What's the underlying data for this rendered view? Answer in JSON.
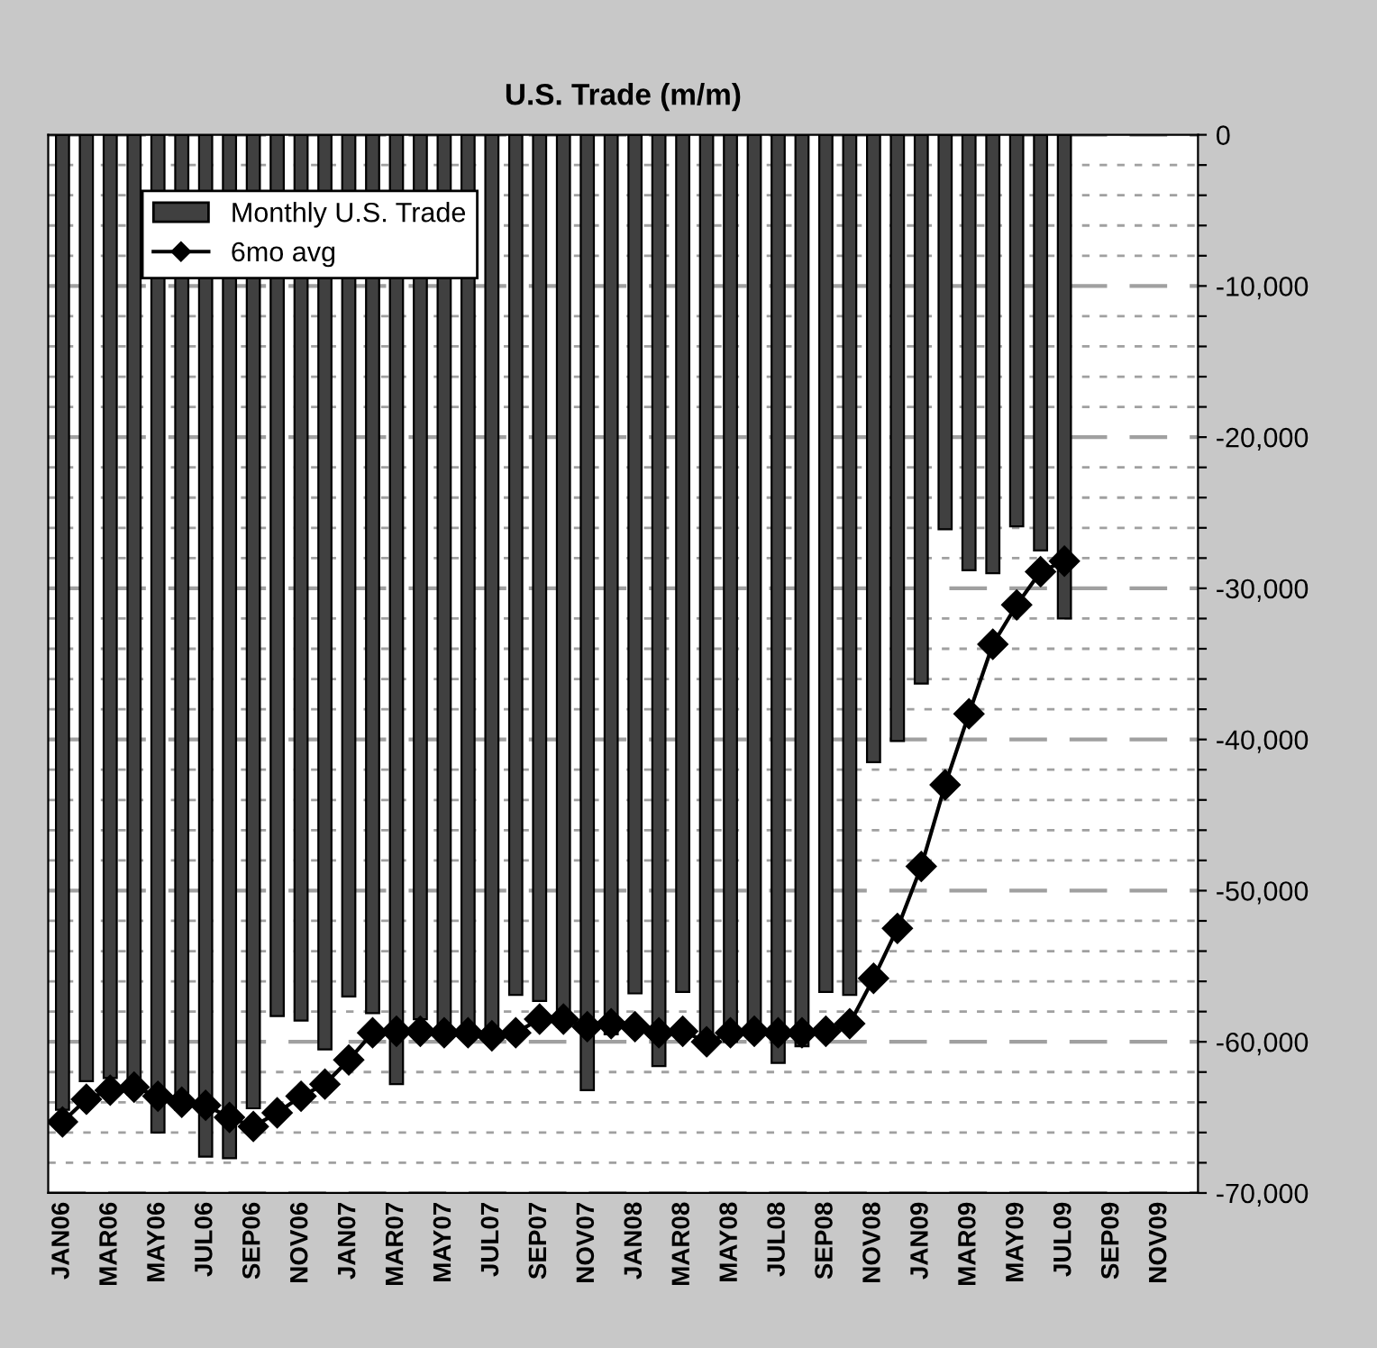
{
  "chart_data": {
    "type": "bar",
    "title": "U.S. Trade (m/m)",
    "categories": [
      "JAN06",
      null,
      "MAR06",
      null,
      "MAY06",
      null,
      "JUL06",
      null,
      "SEP06",
      null,
      "NOV06",
      null,
      "JAN07",
      null,
      "MAR07",
      null,
      "MAY07",
      null,
      "JUL07",
      null,
      "SEP07",
      null,
      "NOV07",
      null,
      "JAN08",
      null,
      "MAR08",
      null,
      "MAY08",
      null,
      "JUL08",
      null,
      "SEP08",
      null,
      "NOV08",
      null,
      "JAN09",
      null,
      "MAR09",
      null,
      "MAY09",
      null,
      "JUL09",
      null,
      "SEP09",
      null,
      "NOV09",
      null
    ],
    "series": [
      {
        "name": "Monthly U.S. Trade",
        "color": "#404040",
        "values": [
          -64500,
          -62600,
          -62400,
          -63500,
          -66000,
          -64500,
          -67600,
          -67700,
          -64400,
          -58300,
          -58600,
          -60500,
          -57000,
          -58100,
          -62800,
          -58500,
          -59000,
          -59000,
          -59000,
          -56900,
          -57300,
          -59000,
          -63200,
          -59500,
          -56800,
          -61600,
          -56700,
          -59500,
          -60000,
          -59000,
          -61400,
          -60300,
          -56700,
          -56900,
          -41500,
          -40100,
          -36300,
          -26100,
          -28800,
          -29000,
          -25900,
          -27500,
          -32000,
          null,
          null,
          null,
          null,
          null
        ]
      },
      {
        "name": "6mo avg",
        "type": "line",
        "color": "#000000",
        "marker": "diamond",
        "values": [
          -65300,
          -63800,
          -63200,
          -63000,
          -63600,
          -64000,
          -64200,
          -65000,
          -65600,
          -64700,
          -63600,
          -62800,
          -61200,
          -59400,
          -59300,
          -59300,
          -59400,
          -59400,
          -59600,
          -59400,
          -58500,
          -58500,
          -59000,
          -58800,
          -59000,
          -59400,
          -59300,
          -60000,
          -59400,
          -59300,
          -59400,
          -59400,
          -59300,
          -58800,
          -55800,
          -52500,
          -48400,
          -43000,
          -38300,
          -33700,
          -31100,
          -28900,
          -28200,
          null,
          null,
          null,
          null,
          null
        ]
      }
    ],
    "ylim": [
      -70000,
      0
    ],
    "yticks": [
      0,
      {
        "value": -2000,
        "label": null
      },
      {
        "value": -4000,
        "label": null
      },
      {
        "value": -6000,
        "label": null
      },
      {
        "value": -8000,
        "label": null
      },
      {
        "value": -10000,
        "label": "-10,000"
      },
      {
        "value": -12000,
        "label": null
      },
      {
        "value": -14000,
        "label": null
      },
      {
        "value": -16000,
        "label": null
      },
      {
        "value": -18000,
        "label": null
      },
      {
        "value": -20000,
        "label": "-20,000"
      },
      {
        "value": -22000,
        "label": null
      },
      {
        "value": -24000,
        "label": null
      },
      {
        "value": -26000,
        "label": null
      },
      {
        "value": -28000,
        "label": null
      },
      {
        "value": -30000,
        "label": "-30,000"
      },
      {
        "value": -32000,
        "label": null
      },
      {
        "value": -34000,
        "label": null
      },
      {
        "value": -36000,
        "label": null
      },
      {
        "value": -38000,
        "label": null
      },
      {
        "value": -40000,
        "label": "-40,000"
      },
      {
        "value": -42000,
        "label": null
      },
      {
        "value": -44000,
        "label": null
      },
      {
        "value": -46000,
        "label": null
      },
      {
        "value": -48000,
        "label": null
      },
      {
        "value": -50000,
        "label": "-50,000"
      },
      {
        "value": -52000,
        "label": null
      },
      {
        "value": -54000,
        "label": null
      },
      {
        "value": -56000,
        "label": null
      },
      {
        "value": -58000,
        "label": null
      },
      {
        "value": -60000,
        "label": "-60,000"
      },
      {
        "value": -62000,
        "label": null
      },
      {
        "value": -64000,
        "label": null
      },
      {
        "value": -66000,
        "label": null
      },
      {
        "value": -68000,
        "label": null
      },
      {
        "value": -70000,
        "label": "-70,000"
      }
    ],
    "grid": "y",
    "legend": "top left"
  }
}
